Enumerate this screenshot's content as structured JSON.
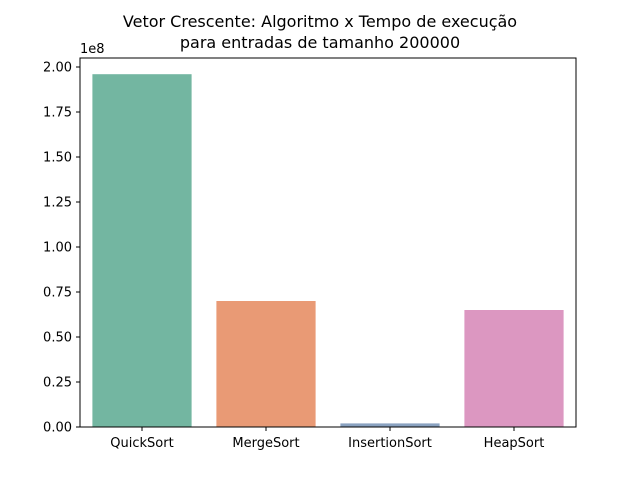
{
  "chart_data": {
    "type": "bar",
    "title": [
      "Vetor Crescente: Algoritmo x Tempo de execução",
      "para entradas de tamanho 200000"
    ],
    "xlabel": "",
    "ylabel": "",
    "y_offset_label": "1e8",
    "categories": [
      "QuickSort",
      "MergeSort",
      "InsertionSort",
      "HeapSort"
    ],
    "values": [
      1.96,
      0.7,
      0.02,
      0.65
    ],
    "colors": [
      "#73b6a1",
      "#e99a75",
      "#8aa2c0",
      "#dc97c1"
    ],
    "ylim": [
      0,
      2.0
    ],
    "yticks": [
      "0.00",
      "0.25",
      "0.50",
      "0.75",
      "1.00",
      "1.25",
      "1.50",
      "1.75",
      "2.00"
    ],
    "grid": false,
    "legend": "none"
  }
}
